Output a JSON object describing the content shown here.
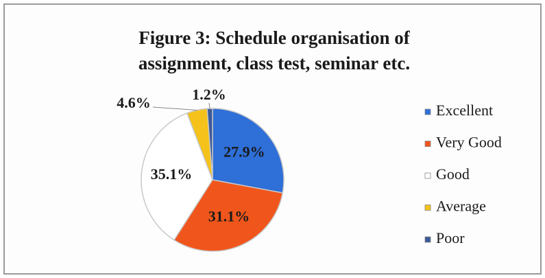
{
  "chart_data": {
    "type": "pie",
    "title": "Figure 3: Schedule organisation of assignment, class test, seminar etc.",
    "title_lines": [
      "Figure 3: Schedule organisation of",
      "assignment, class test, seminar etc."
    ],
    "categories": [
      "Excellent",
      "Very Good",
      "Good",
      "Average",
      "Poor"
    ],
    "values": [
      27.9,
      31.1,
      35.1,
      4.6,
      1.2
    ],
    "value_labels": [
      "27.9%",
      "31.1%",
      "35.1%",
      "4.6%",
      "1.2%"
    ],
    "colors": [
      "#2e6fd8",
      "#f0561c",
      "#ffffff",
      "#f5c21b",
      "#3a5a9a"
    ],
    "legend": "right"
  }
}
